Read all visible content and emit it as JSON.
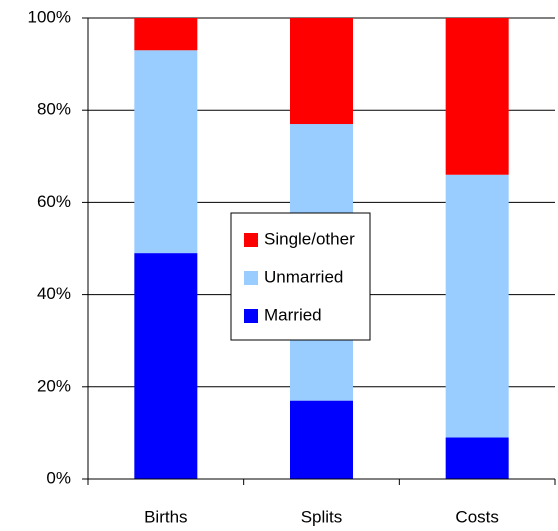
{
  "chart_data": {
    "type": "stacked-bar",
    "categories": [
      "Births",
      "Splits",
      "Costs"
    ],
    "series": [
      {
        "name": "Married",
        "color": "#0000ff",
        "values": [
          49,
          17,
          9
        ]
      },
      {
        "name": "Unmarried",
        "color": "#99ccff",
        "values": [
          44,
          60,
          57
        ]
      },
      {
        "name": "Single/other",
        "color": "#ff0000",
        "values": [
          7,
          23,
          34
        ]
      }
    ],
    "ylim": [
      0,
      100
    ],
    "yticks": [
      {
        "value": 0,
        "label": "0%"
      },
      {
        "value": 20,
        "label": "20%"
      },
      {
        "value": 40,
        "label": "40%"
      },
      {
        "value": 60,
        "label": "60%"
      },
      {
        "value": 80,
        "label": "80%"
      },
      {
        "value": 100,
        "label": "100%"
      }
    ],
    "grid": true,
    "legend": "center"
  }
}
